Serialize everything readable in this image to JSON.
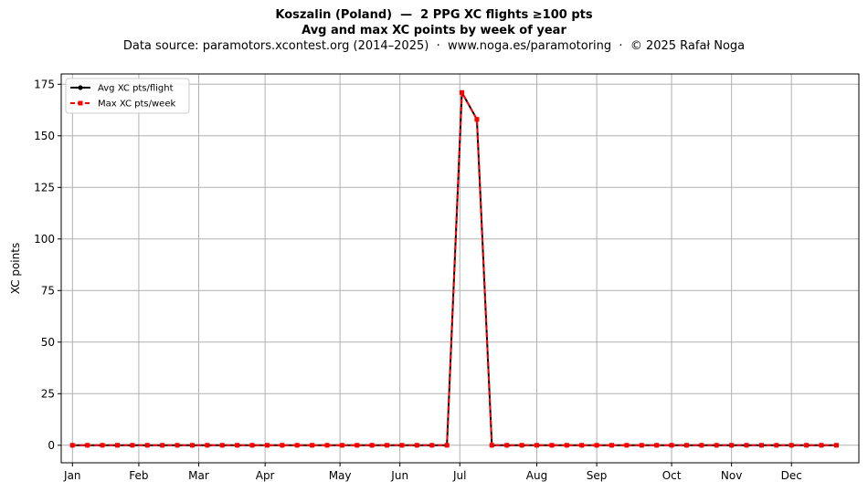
{
  "header": {
    "title_line1": "Koszalin (Poland)  —  2 PPG XC flights ≥100 pts",
    "title_line2": "Avg and max XC points by week of year",
    "subtitle": "Data source: paramotors.xcontest.org (2014–2025)  ·  www.noga.es/paramotoring  ·  © 2025 Rafał Noga"
  },
  "chart_data": {
    "type": "line",
    "title": "Koszalin (Poland)  —  2 PPG XC flights ≥100 pts",
    "subtitle": "Avg and max XC points by week of year",
    "xlabel": "",
    "ylabel": "XC points",
    "x": [
      1,
      2,
      3,
      4,
      5,
      6,
      7,
      8,
      9,
      10,
      11,
      12,
      13,
      14,
      15,
      16,
      17,
      18,
      19,
      20,
      21,
      22,
      23,
      24,
      25,
      26,
      27,
      28,
      29,
      30,
      31,
      32,
      33,
      34,
      35,
      36,
      37,
      38,
      39,
      40,
      41,
      42,
      43,
      44,
      45,
      46,
      47,
      48,
      49,
      50,
      51,
      52
    ],
    "x_ticks": [
      {
        "label": "Jan",
        "week": 1
      },
      {
        "label": "Feb",
        "week": 5.43
      },
      {
        "label": "Mar",
        "week": 9.43
      },
      {
        "label": "Apr",
        "week": 13.86
      },
      {
        "label": "May",
        "week": 18.86
      },
      {
        "label": "Jun",
        "week": 22.86
      },
      {
        "label": "Jul",
        "week": 26.86
      },
      {
        "label": "Aug",
        "week": 32
      },
      {
        "label": "Sep",
        "week": 36
      },
      {
        "label": "Oct",
        "week": 41
      },
      {
        "label": "Nov",
        "week": 45
      },
      {
        "label": "Dec",
        "week": 49
      }
    ],
    "xlim": [
      0.25,
      53.5
    ],
    "ylim": [
      -8.5,
      180
    ],
    "y_ticks": [
      0,
      25,
      50,
      75,
      100,
      125,
      150,
      175
    ],
    "grid": true,
    "legend_position": "top-left",
    "series": [
      {
        "name": "Avg XC pts/flight",
        "color": "#000000",
        "marker": "circle",
        "style": "solid",
        "values": [
          0,
          0,
          0,
          0,
          0,
          0,
          0,
          0,
          0,
          0,
          0,
          0,
          0,
          0,
          0,
          0,
          0,
          0,
          0,
          0,
          0,
          0,
          0,
          0,
          0,
          0,
          171,
          158,
          0,
          0,
          0,
          0,
          0,
          0,
          0,
          0,
          0,
          0,
          0,
          0,
          0,
          0,
          0,
          0,
          0,
          0,
          0,
          0,
          0,
          0,
          0,
          0
        ]
      },
      {
        "name": "Max XC pts/week",
        "color": "#ff0000",
        "marker": "square",
        "style": "dashed",
        "values": [
          0,
          0,
          0,
          0,
          0,
          0,
          0,
          0,
          0,
          0,
          0,
          0,
          0,
          0,
          0,
          0,
          0,
          0,
          0,
          0,
          0,
          0,
          0,
          0,
          0,
          0,
          171,
          158,
          0,
          0,
          0,
          0,
          0,
          0,
          0,
          0,
          0,
          0,
          0,
          0,
          0,
          0,
          0,
          0,
          0,
          0,
          0,
          0,
          0,
          0,
          0,
          0
        ]
      }
    ]
  }
}
